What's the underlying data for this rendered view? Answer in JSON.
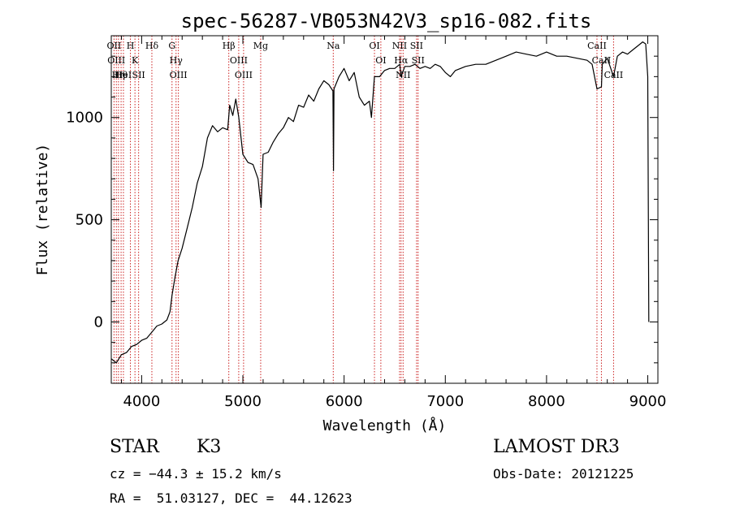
{
  "chart_data": {
    "type": "line",
    "title": "spec-56287-VB053N42V3_sp16-082.fits",
    "xlabel": "Wavelength (Å)",
    "ylabel": "Flux (relative)",
    "xlim": [
      3700,
      9100
    ],
    "ylim": [
      -300,
      1400
    ],
    "xticks": [
      4000,
      5000,
      6000,
      7000,
      8000,
      9000
    ],
    "yticks": [
      0,
      500,
      1000
    ],
    "grid": false,
    "series": [
      {
        "color": "#000000",
        "x": [
          3700,
          3750,
          3800,
          3850,
          3900,
          3950,
          4000,
          4050,
          4100,
          4150,
          4200,
          4250,
          4280,
          4300,
          4330,
          4360,
          4400,
          4450,
          4500,
          4550,
          4600,
          4650,
          4700,
          4750,
          4800,
          4850,
          4870,
          4900,
          4930,
          4960,
          5000,
          5050,
          5100,
          5150,
          5180,
          5200,
          5250,
          5300,
          5350,
          5400,
          5450,
          5500,
          5550,
          5600,
          5650,
          5700,
          5750,
          5800,
          5850,
          5890,
          5895,
          5900,
          5950,
          6000,
          6050,
          6100,
          6150,
          6200,
          6250,
          6270,
          6300,
          6350,
          6400,
          6450,
          6500,
          6550,
          6563,
          6600,
          6650,
          6700,
          6750,
          6800,
          6850,
          6900,
          6950,
          7000,
          7050,
          7100,
          7150,
          7200,
          7300,
          7400,
          7500,
          7600,
          7700,
          7800,
          7900,
          8000,
          8100,
          8200,
          8300,
          8400,
          8450,
          8498,
          8542,
          8550,
          8600,
          8662,
          8700,
          8750,
          8800,
          8850,
          8900,
          8950,
          8980,
          9000,
          9010
        ],
        "y": [
          -180,
          -200,
          -160,
          -150,
          -120,
          -110,
          -90,
          -80,
          -50,
          -20,
          -10,
          10,
          50,
          130,
          220,
          300,
          360,
          460,
          560,
          680,
          760,
          900,
          960,
          930,
          950,
          940,
          1060,
          1010,
          1090,
          1000,
          820,
          780,
          770,
          700,
          560,
          820,
          830,
          880,
          920,
          950,
          1000,
          980,
          1060,
          1050,
          1110,
          1080,
          1140,
          1180,
          1160,
          1130,
          740,
          1140,
          1200,
          1240,
          1180,
          1220,
          1100,
          1060,
          1080,
          1000,
          1200,
          1200,
          1230,
          1240,
          1240,
          1260,
          1200,
          1250,
          1250,
          1260,
          1240,
          1250,
          1240,
          1260,
          1250,
          1220,
          1200,
          1230,
          1240,
          1250,
          1260,
          1260,
          1280,
          1300,
          1320,
          1310,
          1300,
          1320,
          1300,
          1300,
          1290,
          1280,
          1260,
          1140,
          1150,
          1260,
          1290,
          1200,
          1300,
          1320,
          1310,
          1330,
          1350,
          1370,
          1360,
          1200,
          0
        ]
      }
    ],
    "lines": [
      {
        "wave": 3727,
        "label": "OII"
      },
      {
        "wave": 3750,
        "label": "OIII"
      },
      {
        "wave": 3771,
        "label": "Hη"
      },
      {
        "wave": 3797,
        "label": "Hθ"
      },
      {
        "wave": 3820,
        "label": "HeI"
      },
      {
        "wave": 3889,
        "label": "H"
      },
      {
        "wave": 3934,
        "label": "K"
      },
      {
        "wave": 3970,
        "label": "SII"
      },
      {
        "wave": 4101,
        "label": "Hδ"
      },
      {
        "wave": 4300,
        "label": "G"
      },
      {
        "wave": 4340,
        "label": "Hγ"
      },
      {
        "wave": 4363,
        "label": "OIII"
      },
      {
        "wave": 4861,
        "label": "Hβ"
      },
      {
        "wave": 4959,
        "label": "OIII"
      },
      {
        "wave": 5007,
        "label": "OIII"
      },
      {
        "wave": 5176,
        "label": "Mg"
      },
      {
        "wave": 5893,
        "label": "Na"
      },
      {
        "wave": 6300,
        "label": "OI"
      },
      {
        "wave": 6363,
        "label": "OI"
      },
      {
        "wave": 6548,
        "label": "NII"
      },
      {
        "wave": 6563,
        "label": "Hα"
      },
      {
        "wave": 6583,
        "label": "NII"
      },
      {
        "wave": 6716,
        "label": "SII"
      },
      {
        "wave": 6731,
        "label": "SII"
      },
      {
        "wave": 8498,
        "label": "CaII"
      },
      {
        "wave": 8542,
        "label": "CaII"
      },
      {
        "wave": 8662,
        "label": "CaII"
      }
    ]
  },
  "info": {
    "class": "STAR",
    "subclass": "K3",
    "survey": "LAMOST DR3",
    "cz": "cz = −44.3 ± 15.2 km/s",
    "obs_date": "Obs-Date: 20121225",
    "radec": "RA =  51.03127, DEC =  44.12623"
  }
}
